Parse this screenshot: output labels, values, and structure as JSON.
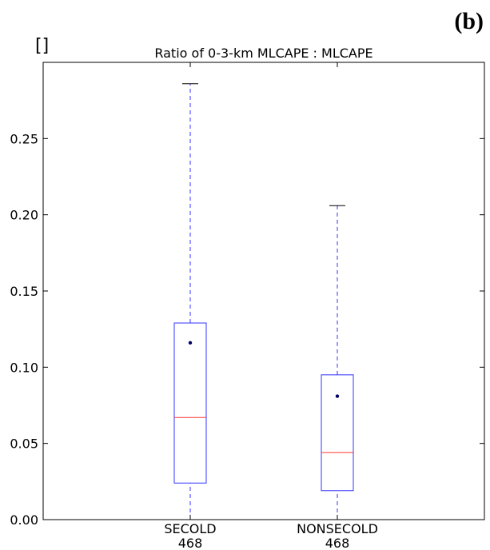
{
  "panel_label": "(b)",
  "units_label": "[]",
  "chart_data": {
    "type": "box",
    "title": "Ratio of 0-3-km MLCAPE : MLCAPE",
    "xlabel": "",
    "ylabel": "",
    "ylim": [
      0,
      0.3
    ],
    "yticks": [
      {
        "value": 0.0,
        "label": "0.00"
      },
      {
        "value": 0.05,
        "label": "0.05"
      },
      {
        "value": 0.1,
        "label": "0.10"
      },
      {
        "value": 0.15,
        "label": "0.15"
      },
      {
        "value": 0.2,
        "label": "0.20"
      },
      {
        "value": 0.25,
        "label": "0.25"
      }
    ],
    "grid": false,
    "colors": {
      "box": "#3333ff",
      "median": "#ff3333",
      "whisker": "#3333ff",
      "mean_marker": "#000066",
      "axes": "#000000"
    },
    "boxes": [
      {
        "category": "SECOLD",
        "count": "468",
        "whisker_low": 0.0,
        "q1": 0.024,
        "median": 0.067,
        "q3": 0.129,
        "whisker_high": 0.286,
        "mean": 0.116
      },
      {
        "category": "NONSECOLD",
        "count": "468",
        "whisker_low": 0.0,
        "q1": 0.019,
        "median": 0.044,
        "q3": 0.095,
        "whisker_high": 0.206,
        "mean": 0.081
      }
    ]
  }
}
